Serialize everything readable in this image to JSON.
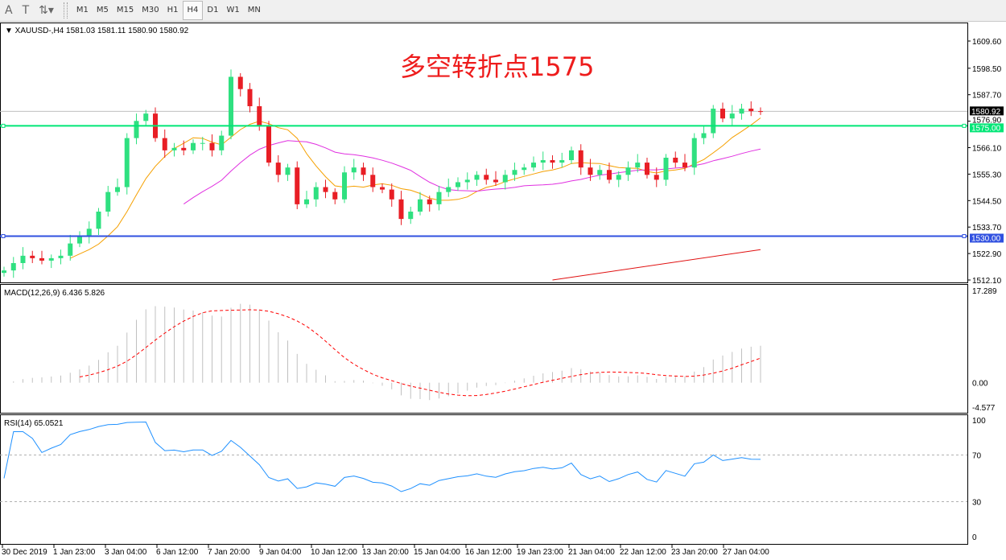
{
  "toolbar": {
    "tools": [
      {
        "name": "text-tool",
        "glyph": "A"
      },
      {
        "name": "text-label-tool",
        "glyph": "T"
      },
      {
        "name": "arrows-tool",
        "glyph": "⇅▾"
      }
    ],
    "timeframes": [
      "M1",
      "M5",
      "M15",
      "M30",
      "H1",
      "H4",
      "D1",
      "W1",
      "MN"
    ],
    "active_timeframe": "H4"
  },
  "chart_header": {
    "symbol": "XAUUSD-,H4",
    "ohlc": "1581.03 1581.11 1580.90 1580.92"
  },
  "annotation": "多空转折点1575",
  "colors": {
    "bull": "#2fe080",
    "bear": "#e81e25",
    "ma_fast": "#f5a000",
    "ma_slow": "#e030e0",
    "ma_long": "#e01010",
    "support_line": "#00e676",
    "resistance_line": "#3050e0",
    "macd_hist": "#c0c0c0",
    "macd_signal": "#ff0000",
    "rsi": "#1e90ff"
  },
  "chart_data": {
    "type": "candlestick",
    "price_axis_ticks": [
      1609.6,
      1598.5,
      1587.7,
      1576.9,
      1566.1,
      1555.3,
      1544.5,
      1533.7,
      1522.9,
      1512.1
    ],
    "ylim": [
      1512.1,
      1609.6
    ],
    "current_price": "1580.92",
    "hlines": [
      {
        "value": 1575.0,
        "label": "1575.00",
        "color": "#00e676"
      },
      {
        "value": 1530.0,
        "label": "1530.00",
        "color": "#3050e0"
      }
    ],
    "closes": [
      1516,
      1519,
      1522,
      1521,
      1520,
      1521,
      1522,
      1527,
      1530,
      1533,
      1540,
      1548,
      1550,
      1570,
      1577,
      1580,
      1570,
      1565,
      1566,
      1565,
      1568,
      1568,
      1565,
      1571,
      1595,
      1590,
      1583,
      1575,
      1560,
      1555,
      1558,
      1543,
      1545,
      1550,
      1548,
      1545,
      1556,
      1558,
      1555,
      1550,
      1549,
      1545,
      1537,
      1540,
      1545,
      1543,
      1548,
      1550,
      1552,
      1553,
      1555,
      1553,
      1552,
      1555,
      1557,
      1558,
      1560,
      1561,
      1560,
      1561,
      1565,
      1558,
      1555,
      1557,
      1553,
      1555,
      1558,
      1560,
      1555,
      1553,
      1562,
      1560,
      1558,
      1570,
      1572,
      1582,
      1578,
      1580,
      1582,
      1581,
      1580.92
    ],
    "ma_long_tail": {
      "start_price": 1512.1,
      "end_price": 1524.5,
      "start_index": 58
    },
    "time_labels": [
      "30 Dec 2019",
      "1 Jan 23:00",
      "3 Jan 04:00",
      "6 Jan 12:00",
      "7 Jan 20:00",
      "9 Jan 04:00",
      "10 Jan 12:00",
      "13 Jan 20:00",
      "15 Jan 04:00",
      "16 Jan 12:00",
      "19 Jan 23:00",
      "21 Jan 04:00",
      "22 Jan 12:00",
      "23 Jan 20:00",
      "27 Jan 04:00"
    ],
    "macd": {
      "label": "MACD(12,26,9) 6.436 5.826",
      "ticks": [
        "17.289",
        "0.00",
        "-4.577"
      ],
      "range": [
        -4.577,
        17.289
      ]
    },
    "rsi": {
      "label": "RSI(14) 65.0521",
      "ticks": [
        "100",
        "70",
        "30",
        "0"
      ],
      "levels": [
        70,
        30
      ]
    }
  }
}
